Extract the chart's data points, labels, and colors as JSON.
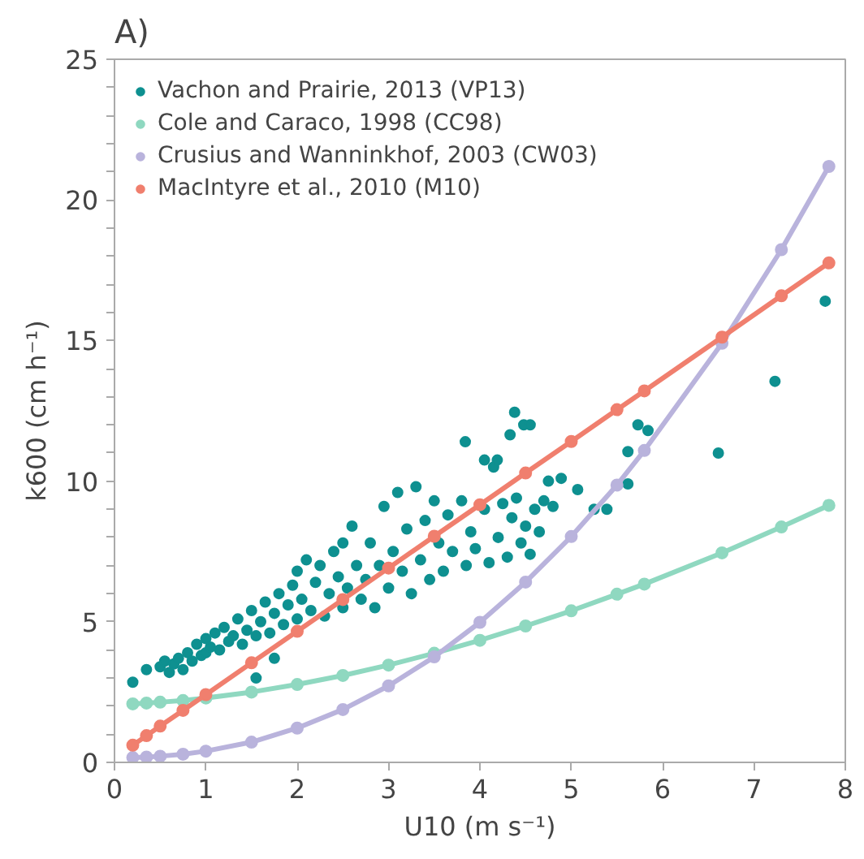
{
  "chart_data": {
    "type": "line",
    "title": "A)",
    "xlabel": "U10 (m s⁻¹)",
    "ylabel": "k600 (cm h⁻¹)",
    "xlim": [
      0,
      8
    ],
    "ylim": [
      0,
      25
    ],
    "xticks": [
      0,
      1,
      2,
      3,
      4,
      5,
      6,
      7,
      8
    ],
    "yticks": [
      0,
      {
        "value": 1,
        "label": null
      },
      {
        "value": 2,
        "label": null
      },
      {
        "value": 3,
        "label": null
      },
      {
        "value": 4,
        "label": null
      },
      5,
      {
        "value": 6,
        "label": null
      },
      {
        "value": 7,
        "label": null
      },
      {
        "value": 8,
        "label": null
      },
      {
        "value": 9,
        "label": null
      },
      10,
      {
        "value": 11,
        "label": null
      },
      {
        "value": 12,
        "label": null
      },
      {
        "value": 13,
        "label": null
      },
      {
        "value": 14,
        "label": null
      },
      15,
      {
        "value": 16,
        "label": null
      },
      {
        "value": 17,
        "label": null
      },
      {
        "value": 18,
        "label": null
      },
      {
        "value": 19,
        "label": null
      },
      20,
      {
        "value": 21,
        "label": null
      },
      {
        "value": 22,
        "label": null
      },
      {
        "value": 23,
        "label": null
      },
      {
        "value": 24,
        "label": null
      },
      25
    ],
    "grid": false,
    "legend": "top left",
    "marker": "circle",
    "line_style": "solid",
    "series": [
      {
        "name": "Vachon and Prairie, 2013 (VP13)",
        "type": "scatter",
        "color": "#0e9090",
        "x": [
          0.2,
          0.35,
          0.5,
          0.55,
          0.6,
          0.65,
          0.7,
          0.75,
          0.8,
          0.85,
          0.9,
          0.95,
          1.0,
          1.0,
          1.05,
          1.1,
          1.15,
          1.2,
          1.25,
          1.3,
          1.35,
          1.4,
          1.45,
          1.5,
          1.55,
          1.55,
          1.6,
          1.65,
          1.7,
          1.75,
          1.75,
          1.8,
          1.85,
          1.9,
          1.95,
          2.0,
          2.0,
          2.05,
          2.1,
          2.15,
          2.2,
          2.25,
          2.3,
          2.35,
          2.4,
          2.45,
          2.5,
          2.5,
          2.55,
          2.6,
          2.65,
          2.7,
          2.75,
          2.8,
          2.85,
          2.9,
          2.95,
          3.0,
          3.05,
          3.1,
          3.15,
          3.2,
          3.25,
          3.3,
          3.35,
          3.4,
          3.45,
          3.5,
          3.55,
          3.6,
          3.65,
          3.7,
          3.8,
          3.85,
          3.9,
          3.95,
          4.05,
          4.1,
          4.15,
          4.2,
          4.25,
          4.3,
          4.35,
          4.4,
          4.45,
          4.5,
          4.55,
          4.6,
          4.65,
          4.7,
          4.75,
          4.8,
          4.89,
          5.07,
          5.25,
          5.39,
          5.62,
          3.84,
          4.05,
          4.19,
          4.33,
          4.38,
          4.48,
          4.55,
          5.62,
          5.73,
          5.84,
          6.61,
          7.23,
          7.78
        ],
        "values": [
          2.85,
          3.3,
          3.4,
          3.6,
          3.2,
          3.5,
          3.7,
          3.3,
          3.9,
          3.6,
          4.2,
          3.8,
          4.4,
          3.9,
          4.1,
          4.6,
          4.0,
          4.8,
          4.3,
          4.5,
          5.1,
          4.2,
          4.7,
          5.4,
          3.0,
          4.5,
          5.0,
          5.7,
          4.6,
          3.7,
          5.3,
          6.0,
          4.9,
          5.6,
          6.3,
          5.1,
          6.8,
          5.8,
          7.2,
          5.4,
          6.4,
          7.0,
          5.2,
          6.0,
          7.5,
          6.6,
          5.5,
          7.8,
          6.2,
          8.4,
          7.0,
          5.8,
          6.5,
          7.8,
          5.5,
          7.0,
          9.1,
          6.2,
          7.5,
          9.6,
          6.8,
          8.3,
          6.0,
          9.8,
          7.2,
          8.6,
          6.5,
          9.3,
          7.8,
          6.8,
          8.8,
          7.5,
          9.3,
          7.0,
          8.2,
          7.6,
          9.0,
          7.1,
          10.5,
          8.0,
          9.2,
          7.3,
          8.7,
          9.4,
          7.8,
          8.4,
          7.4,
          9.0,
          8.2,
          9.3,
          10.0,
          9.1,
          10.1,
          9.7,
          9.0,
          9.0,
          9.9,
          11.4,
          10.75,
          10.75,
          11.65,
          12.45,
          12.0,
          12.0,
          11.05,
          12.0,
          11.8,
          11.0,
          13.55,
          16.4
        ]
      },
      {
        "name": "Cole and Caraco, 1998 (CC98)",
        "color": "#8fd8c0",
        "x": [
          0.2,
          0.35,
          0.5,
          0.75,
          1,
          1.5,
          2,
          2.5,
          3,
          3.5,
          4,
          4.5,
          5,
          5.5,
          5.8,
          6.65,
          7.3,
          7.82
        ],
        "values": [
          2.08,
          2.11,
          2.14,
          2.2,
          2.29,
          2.5,
          2.77,
          3.09,
          3.46,
          3.88,
          4.34,
          4.85,
          5.39,
          5.98,
          6.34,
          7.45,
          8.37,
          9.14
        ]
      },
      {
        "name": "Crusius and Wanninkhof, 2003 (CW03)",
        "color": "#b9b3dc",
        "x": [
          0.2,
          0.35,
          0.5,
          0.75,
          1,
          1.5,
          2,
          2.5,
          3,
          3.5,
          4,
          4.5,
          5,
          5.5,
          5.8,
          6.65,
          7.3,
          7.82
        ],
        "values": [
          0.17,
          0.19,
          0.22,
          0.29,
          0.4,
          0.72,
          1.22,
          1.88,
          2.72,
          3.75,
          4.98,
          6.41,
          8.03,
          9.86,
          11.09,
          14.9,
          18.23,
          21.19
        ]
      },
      {
        "name": "MacIntyre et al., 2010 (M10)",
        "color": "#f07f6e",
        "x": [
          0.2,
          0.35,
          0.5,
          0.75,
          1,
          1.5,
          2,
          2.5,
          3,
          3.5,
          4,
          4.5,
          5,
          5.5,
          5.8,
          6.65,
          7.3,
          7.82
        ],
        "values": [
          0.61,
          0.95,
          1.29,
          1.85,
          2.41,
          3.54,
          4.66,
          5.79,
          6.91,
          8.04,
          9.16,
          10.29,
          11.41,
          12.54,
          13.21,
          15.12,
          16.59,
          17.76
        ]
      }
    ]
  }
}
